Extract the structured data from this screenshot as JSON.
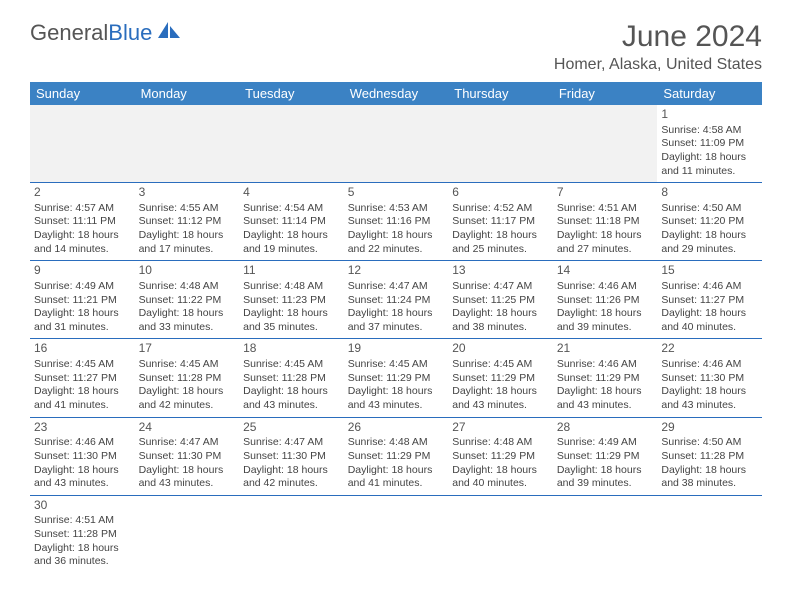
{
  "logo": {
    "text1": "General",
    "text2": "Blue"
  },
  "title": "June 2024",
  "location": "Homer, Alaska, United States",
  "header_bg": "#3b82c4",
  "border_color": "#2a6dbd",
  "daynames": [
    "Sunday",
    "Monday",
    "Tuesday",
    "Wednesday",
    "Thursday",
    "Friday",
    "Saturday"
  ],
  "weeks": [
    [
      null,
      null,
      null,
      null,
      null,
      null,
      {
        "n": "1",
        "sr": "4:58 AM",
        "ss": "11:09 PM",
        "dl": "18 hours and 11 minutes."
      }
    ],
    [
      {
        "n": "2",
        "sr": "4:57 AM",
        "ss": "11:11 PM",
        "dl": "18 hours and 14 minutes."
      },
      {
        "n": "3",
        "sr": "4:55 AM",
        "ss": "11:12 PM",
        "dl": "18 hours and 17 minutes."
      },
      {
        "n": "4",
        "sr": "4:54 AM",
        "ss": "11:14 PM",
        "dl": "18 hours and 19 minutes."
      },
      {
        "n": "5",
        "sr": "4:53 AM",
        "ss": "11:16 PM",
        "dl": "18 hours and 22 minutes."
      },
      {
        "n": "6",
        "sr": "4:52 AM",
        "ss": "11:17 PM",
        "dl": "18 hours and 25 minutes."
      },
      {
        "n": "7",
        "sr": "4:51 AM",
        "ss": "11:18 PM",
        "dl": "18 hours and 27 minutes."
      },
      {
        "n": "8",
        "sr": "4:50 AM",
        "ss": "11:20 PM",
        "dl": "18 hours and 29 minutes."
      }
    ],
    [
      {
        "n": "9",
        "sr": "4:49 AM",
        "ss": "11:21 PM",
        "dl": "18 hours and 31 minutes."
      },
      {
        "n": "10",
        "sr": "4:48 AM",
        "ss": "11:22 PM",
        "dl": "18 hours and 33 minutes."
      },
      {
        "n": "11",
        "sr": "4:48 AM",
        "ss": "11:23 PM",
        "dl": "18 hours and 35 minutes."
      },
      {
        "n": "12",
        "sr": "4:47 AM",
        "ss": "11:24 PM",
        "dl": "18 hours and 37 minutes."
      },
      {
        "n": "13",
        "sr": "4:47 AM",
        "ss": "11:25 PM",
        "dl": "18 hours and 38 minutes."
      },
      {
        "n": "14",
        "sr": "4:46 AM",
        "ss": "11:26 PM",
        "dl": "18 hours and 39 minutes."
      },
      {
        "n": "15",
        "sr": "4:46 AM",
        "ss": "11:27 PM",
        "dl": "18 hours and 40 minutes."
      }
    ],
    [
      {
        "n": "16",
        "sr": "4:45 AM",
        "ss": "11:27 PM",
        "dl": "18 hours and 41 minutes."
      },
      {
        "n": "17",
        "sr": "4:45 AM",
        "ss": "11:28 PM",
        "dl": "18 hours and 42 minutes."
      },
      {
        "n": "18",
        "sr": "4:45 AM",
        "ss": "11:28 PM",
        "dl": "18 hours and 43 minutes."
      },
      {
        "n": "19",
        "sr": "4:45 AM",
        "ss": "11:29 PM",
        "dl": "18 hours and 43 minutes."
      },
      {
        "n": "20",
        "sr": "4:45 AM",
        "ss": "11:29 PM",
        "dl": "18 hours and 43 minutes."
      },
      {
        "n": "21",
        "sr": "4:46 AM",
        "ss": "11:29 PM",
        "dl": "18 hours and 43 minutes."
      },
      {
        "n": "22",
        "sr": "4:46 AM",
        "ss": "11:30 PM",
        "dl": "18 hours and 43 minutes."
      }
    ],
    [
      {
        "n": "23",
        "sr": "4:46 AM",
        "ss": "11:30 PM",
        "dl": "18 hours and 43 minutes."
      },
      {
        "n": "24",
        "sr": "4:47 AM",
        "ss": "11:30 PM",
        "dl": "18 hours and 43 minutes."
      },
      {
        "n": "25",
        "sr": "4:47 AM",
        "ss": "11:30 PM",
        "dl": "18 hours and 42 minutes."
      },
      {
        "n": "26",
        "sr": "4:48 AM",
        "ss": "11:29 PM",
        "dl": "18 hours and 41 minutes."
      },
      {
        "n": "27",
        "sr": "4:48 AM",
        "ss": "11:29 PM",
        "dl": "18 hours and 40 minutes."
      },
      {
        "n": "28",
        "sr": "4:49 AM",
        "ss": "11:29 PM",
        "dl": "18 hours and 39 minutes."
      },
      {
        "n": "29",
        "sr": "4:50 AM",
        "ss": "11:28 PM",
        "dl": "18 hours and 38 minutes."
      }
    ],
    [
      {
        "n": "30",
        "sr": "4:51 AM",
        "ss": "11:28 PM",
        "dl": "18 hours and 36 minutes."
      },
      null,
      null,
      null,
      null,
      null,
      null
    ]
  ],
  "labels": {
    "sunrise": "Sunrise:",
    "sunset": "Sunset:",
    "daylight": "Daylight:"
  }
}
